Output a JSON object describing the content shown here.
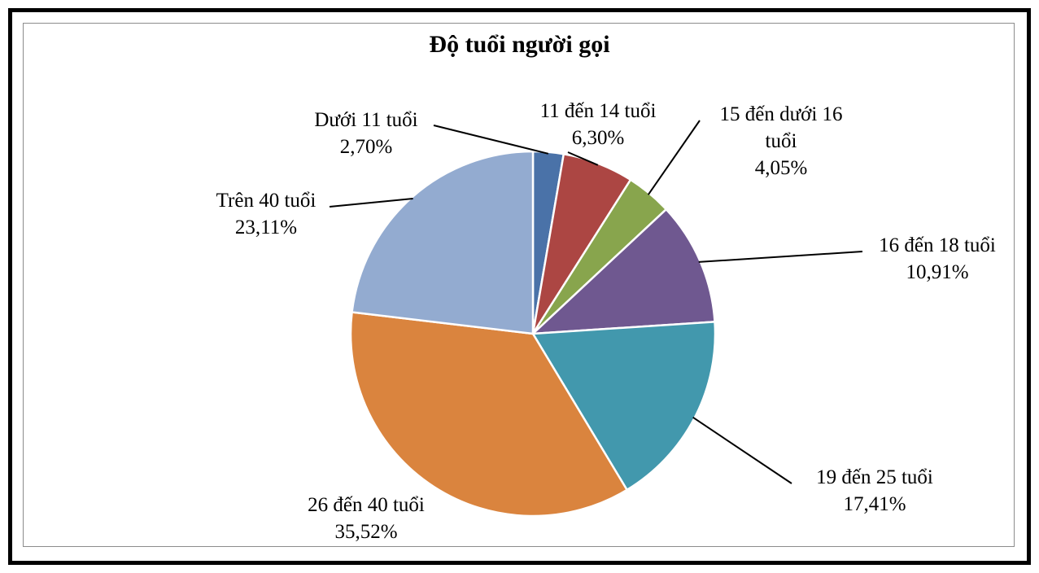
{
  "chart_data": {
    "type": "pie",
    "title": "Độ tuổi người gọi",
    "slices": [
      {
        "label": "Dưới 11 tuổi",
        "label_lines": [
          "Dưới 11 tuổi"
        ],
        "value": 2.7,
        "display": "2,70%",
        "color": "#4a72a8"
      },
      {
        "label": "11 đến 14 tuổi",
        "label_lines": [
          "11 đến 14 tuổi"
        ],
        "value": 6.3,
        "display": "6,30%",
        "color": "#ac4643"
      },
      {
        "label": "15 đến dưới 16 tuổi",
        "label_lines": [
          "15 đến dưới 16",
          "tuổi"
        ],
        "value": 4.05,
        "display": "4,05%",
        "color": "#88a54d"
      },
      {
        "label": "16 đến 18 tuổi",
        "label_lines": [
          "16 đến 18 tuổi"
        ],
        "value": 10.91,
        "display": "10,91%",
        "color": "#6f5890"
      },
      {
        "label": "19 đến 25 tuổi",
        "label_lines": [
          "19 đến 25 tuổi"
        ],
        "value": 17.41,
        "display": "17,41%",
        "color": "#4298ad"
      },
      {
        "label": "26 đến 40 tuổi",
        "label_lines": [
          "26 đến 40 tuổi"
        ],
        "value": 35.52,
        "display": "35,52%",
        "color": "#da843e"
      },
      {
        "label": "Trên 40 tuổi",
        "label_lines": [
          "Trên 40 tuổi"
        ],
        "value": 23.11,
        "display": "23,11%",
        "color": "#93abd0"
      }
    ],
    "start_angle_deg": 0,
    "direction": "clockwise",
    "legend": "none",
    "leader_lines": true
  }
}
